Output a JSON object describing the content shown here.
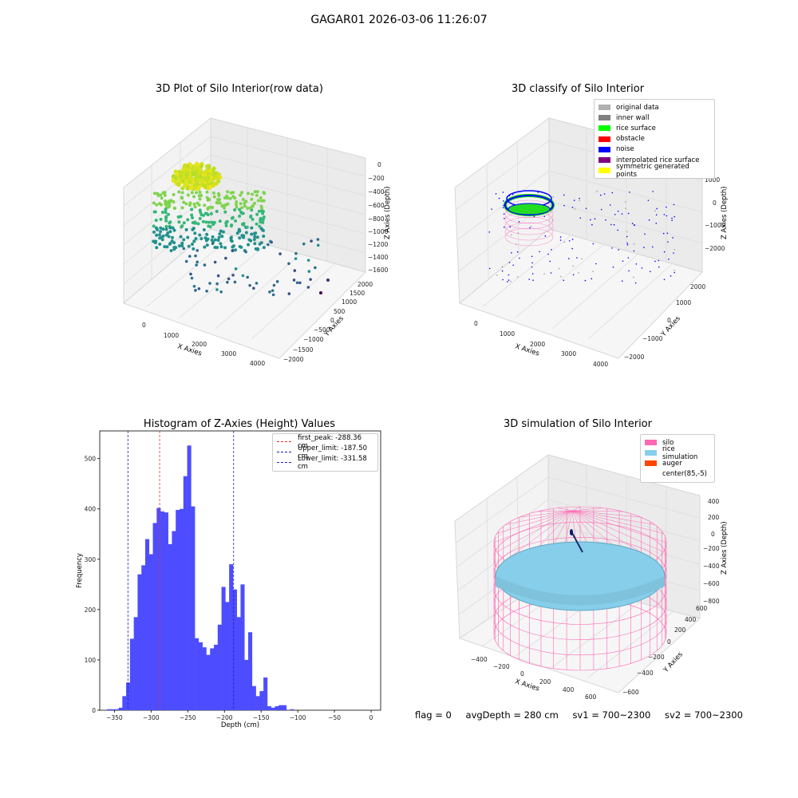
{
  "figure_title": "GAGAR01 2026-03-06 11:26:07",
  "footer": {
    "flag": "flag = 0",
    "avg_depth": "avgDepth = 280 cm",
    "sv1": "sv1 = 700~2300",
    "sv2": "sv2 = 700~2300"
  },
  "colors": {
    "hist_bar": "#4d4dff",
    "first_peak": "#e03030",
    "limits": "#1f1fc0",
    "pane": "#f2f2f2",
    "grid": "#d9d9d9"
  },
  "panels": {
    "raw": {
      "title": "3D Plot of Silo Interior(row data)",
      "xlabel": "X Axies",
      "ylabel": "Y Axies",
      "zlabel": "Z Axies (Depth)",
      "xticks": [
        "0",
        "1000",
        "2000",
        "3000",
        "4000"
      ],
      "yticks": [
        "−2000",
        "−1500",
        "−1000",
        "−500",
        "0",
        "500",
        "1000",
        "1500",
        "2000"
      ],
      "zticks": [
        "−1600",
        "−1400",
        "−1200",
        "−1000",
        "−800",
        "−600",
        "−400",
        "−200",
        "0"
      ]
    },
    "classify": {
      "title": "3D classify of Silo Interior",
      "xlabel": "X Axies",
      "ylabel": "Y Axies",
      "zlabel": "Z Axies (Depth)",
      "xticks": [
        "0",
        "1000",
        "2000",
        "3000",
        "4000"
      ],
      "yticks": [
        "−2000",
        "−1000",
        "0",
        "1000",
        "2000"
      ],
      "zticks": [
        "−2000",
        "−1000",
        "0",
        "1000"
      ],
      "legend": [
        {
          "label": "original data",
          "color": "#b0b0b0"
        },
        {
          "label": "inner wall",
          "color": "#808080"
        },
        {
          "label": "rice surface",
          "color": "#00ff00"
        },
        {
          "label": "obstacle",
          "color": "#ff0000"
        },
        {
          "label": "noise",
          "color": "#0000ff"
        },
        {
          "label": "interpolated rice surface",
          "color": "#800080"
        },
        {
          "label": "symmetric generated points",
          "color": "#ffff00"
        }
      ]
    },
    "simulation": {
      "title": "3D simulation of Silo Interior",
      "xlabel": "X Axies",
      "ylabel": "Y Axies",
      "zlabel": "Z Axies (Depth)",
      "xticks": [
        "−400",
        "−200",
        "0",
        "200",
        "400",
        "600"
      ],
      "yticks": [
        "−600",
        "−400",
        "−200",
        "0",
        "200",
        "400",
        "600"
      ],
      "zticks": [
        "−800",
        "−600",
        "−400",
        "−200",
        "0",
        "200",
        "400"
      ],
      "legend": [
        {
          "label": "silo",
          "color": "#ff69b4"
        },
        {
          "label": "rice simulation",
          "color": "#87ceeb"
        },
        {
          "label": "auger",
          "color": "#ff4500"
        },
        {
          "label": "center(85,-5)",
          "color": "#ffffff"
        }
      ]
    }
  },
  "chart_data": {
    "type": "bar",
    "title": "Histogram of Z-Axies (Height) Values",
    "xlabel": "Depth (cm)",
    "ylabel": "Frequency",
    "xlim": [
      -370,
      13
    ],
    "ylim": [
      0,
      555
    ],
    "xticks": [
      -350,
      -300,
      -250,
      -200,
      -150,
      -100,
      -50,
      0
    ],
    "yticks": [
      0,
      100,
      200,
      300,
      400,
      500
    ],
    "bin_start": -360,
    "bin_width": 5.2,
    "values": [
      2,
      2,
      2,
      5,
      28,
      55,
      142,
      185,
      270,
      288,
      340,
      310,
      372,
      402,
      395,
      393,
      330,
      356,
      398,
      400,
      465,
      526,
      405,
      143,
      135,
      125,
      110,
      123,
      130,
      170,
      245,
      215,
      290,
      240,
      185,
      250,
      100,
      155,
      48,
      28,
      38,
      65,
      8,
      5,
      8,
      10,
      10,
      0,
      2
    ],
    "vlines": [
      {
        "label": "first_peak: -288.36 cm",
        "x": -288.36,
        "color": "#e03030"
      },
      {
        "label": "Upper_limit: -187.50 cm",
        "x": -187.5,
        "color": "#1f1fc0"
      },
      {
        "label": "Lower_limit: -331.58 cm",
        "x": -331.58,
        "color": "#1f1fc0"
      }
    ]
  }
}
